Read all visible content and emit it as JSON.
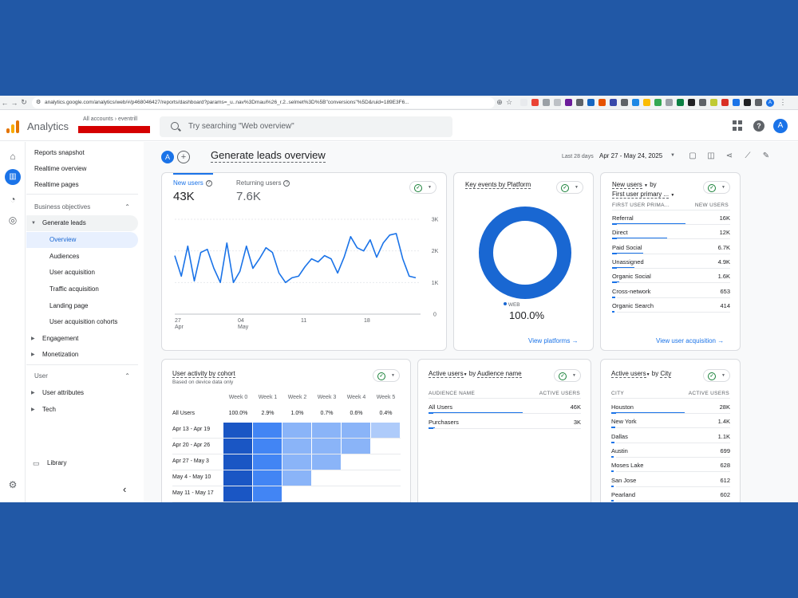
{
  "browser": {
    "url": "analytics.google.com/analytics/web/#/p468046427/reports/dashboard?params=_u..nav%3Dmaui%26_r.2..selmet%3D%5B\"conversions\"%5D&ruid=189E3F6..."
  },
  "header": {
    "app_name": "Analytics",
    "accounts_breadcrumb": "All accounts",
    "account_name": "eventrill",
    "search_placeholder": "Try searching \"Web overview\"",
    "user_initial": "A"
  },
  "sidebar": {
    "reports_snapshot": "Reports snapshot",
    "realtime_overview": "Realtime overview",
    "realtime_pages": "Realtime pages",
    "business_objectives": "Business objectives",
    "generate_leads": "Generate leads",
    "overview": "Overview",
    "audiences": "Audiences",
    "user_acquisition": "User acquisition",
    "traffic_acquisition": "Traffic acquisition",
    "landing_page": "Landing page",
    "user_acquisition_cohorts": "User acquisition cohorts",
    "engagement": "Engagement",
    "monetization": "Monetization",
    "user_section": "User",
    "user_attributes": "User attributes",
    "tech": "Tech",
    "library": "Library",
    "collapse": "‹"
  },
  "main": {
    "compare_initial": "A",
    "title": "Generate leads overview",
    "date_label": "Last 28 days",
    "date_range": "Apr 27 - May 24, 2025"
  },
  "users_card": {
    "new_users_label": "New users",
    "new_users_value": "43K",
    "returning_users_label": "Returning users",
    "returning_users_value": "7.6K"
  },
  "chart_data": {
    "type": "line",
    "series": [
      {
        "values": [
          1850,
          1200,
          2150,
          1050,
          1950,
          2050,
          1450,
          1000,
          2250,
          1000,
          1350,
          2150,
          1450,
          1750,
          2100,
          1950,
          1300,
          1000,
          1150,
          1200,
          1500,
          1750,
          1650,
          1850,
          1750,
          1300,
          1800,
          2450,
          2100,
          2000,
          2350,
          1800,
          2250,
          2500,
          2550,
          1750,
          1200,
          1150
        ]
      }
    ],
    "x_ticks": [
      {
        "label": "27",
        "sub": "Apr"
      },
      {
        "label": "04",
        "sub": "May"
      },
      {
        "label": "11",
        "sub": ""
      },
      {
        "label": "18",
        "sub": ""
      }
    ],
    "y_ticks": [
      "3K",
      "2K",
      "1K",
      "0"
    ],
    "ylim": [
      0,
      3000
    ]
  },
  "platform_card": {
    "title": "Key events by Platform",
    "legend_label": "WEB",
    "value": "100.0%",
    "link": "View platforms",
    "color": "#1967d2"
  },
  "channel_card": {
    "title_line1": "New users",
    "title_by": "by",
    "title_line2": "First user primary ...",
    "col1": "FIRST USER PRIMA...",
    "col2": "NEW USERS",
    "rows": [
      {
        "name": "Referral",
        "value": "16K",
        "pct": 1.0
      },
      {
        "name": "Direct",
        "value": "12K",
        "pct": 0.75
      },
      {
        "name": "Paid Social",
        "value": "6.7K",
        "pct": 0.42
      },
      {
        "name": "Unassigned",
        "value": "4.9K",
        "pct": 0.31
      },
      {
        "name": "Organic Social",
        "value": "1.6K",
        "pct": 0.1
      },
      {
        "name": "Cross-network",
        "value": "653",
        "pct": 0.04
      },
      {
        "name": "Organic Search",
        "value": "414",
        "pct": 0.03
      }
    ],
    "link": "View user acquisition"
  },
  "cohort_card": {
    "title": "User activity by cohort",
    "subtitle": "Based on device data only",
    "weeks": [
      "Week 0",
      "Week 1",
      "Week 2",
      "Week 3",
      "Week 4",
      "Week 5"
    ],
    "all_label": "All Users",
    "all_values": [
      "100.0%",
      "2.9%",
      "1.0%",
      "0.7%",
      "0.6%",
      "0.4%"
    ],
    "rows": [
      {
        "label": "Apr 13 - Apr 19",
        "cells": [
          4,
          3,
          2,
          2,
          2,
          1
        ]
      },
      {
        "label": "Apr 20 - Apr 26",
        "cells": [
          4,
          3,
          2,
          2,
          2
        ]
      },
      {
        "label": "Apr 27 - May 3",
        "cells": [
          4,
          3,
          2,
          2
        ]
      },
      {
        "label": "May 4 - May 10",
        "cells": [
          4,
          3,
          2
        ]
      },
      {
        "label": "May 11 - May 17",
        "cells": [
          4,
          3
        ]
      }
    ],
    "shades": [
      "#ffffff",
      "#aecbfa",
      "#8ab4f8",
      "#4285f4",
      "#1a56c4"
    ]
  },
  "audience_card": {
    "title_metric": "Active users",
    "title_by": "by",
    "title_dim": "Audience name",
    "col1": "AUDIENCE NAME",
    "col2": "ACTIVE USERS",
    "rows": [
      {
        "name": "All Users",
        "value": "46K",
        "pct": 1.0
      },
      {
        "name": "Purchasers",
        "value": "3K",
        "pct": 0.07
      }
    ]
  },
  "city_card": {
    "title_metric": "Active users",
    "title_by": "by",
    "title_dim": "City",
    "col1": "CITY",
    "col2": "ACTIVE USERS",
    "rows": [
      {
        "name": "Houston",
        "value": "28K",
        "pct": 1.0
      },
      {
        "name": "New York",
        "value": "1.4K",
        "pct": 0.05
      },
      {
        "name": "Dallas",
        "value": "1.1K",
        "pct": 0.04
      },
      {
        "name": "Austin",
        "value": "699",
        "pct": 0.03
      },
      {
        "name": "Moses Lake",
        "value": "628",
        "pct": 0.03
      },
      {
        "name": "San Jose",
        "value": "612",
        "pct": 0.03
      },
      {
        "name": "Pearland",
        "value": "602",
        "pct": 0.03
      }
    ]
  }
}
